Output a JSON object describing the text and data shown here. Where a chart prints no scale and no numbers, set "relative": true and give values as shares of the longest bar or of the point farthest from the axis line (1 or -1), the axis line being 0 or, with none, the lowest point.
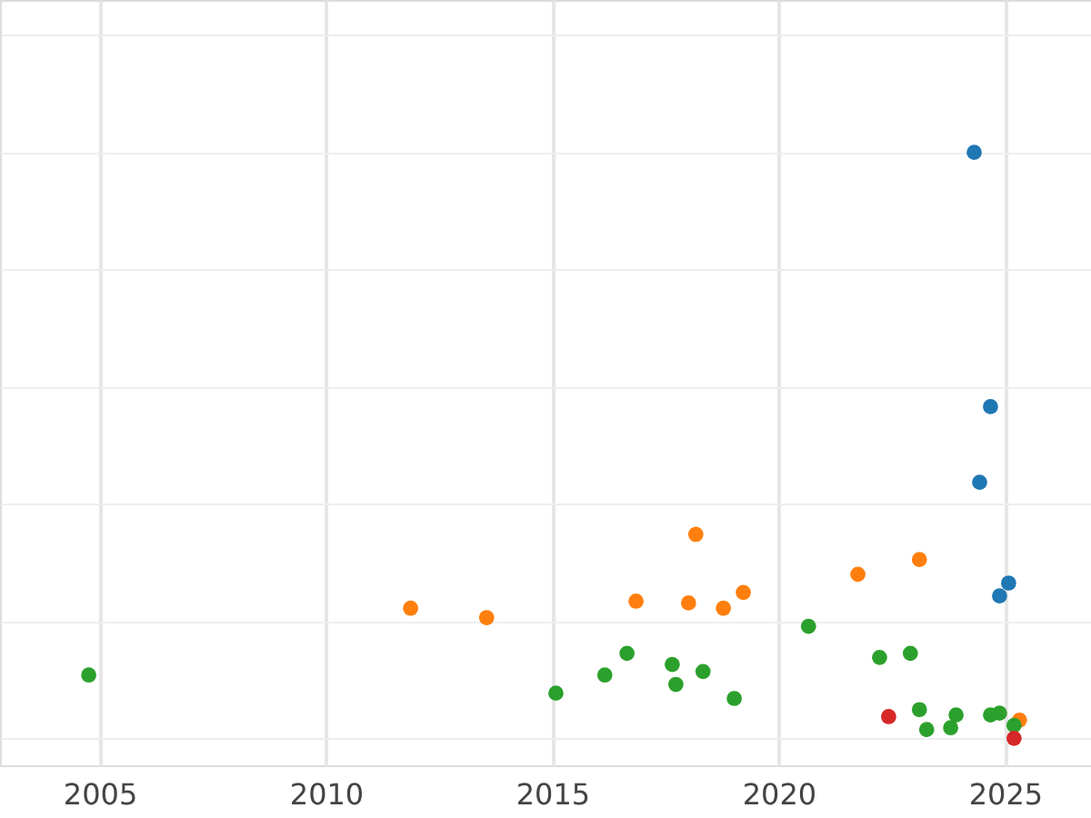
{
  "chart_data": {
    "type": "scatter",
    "relative": true,
    "xlim": [
      2002.8,
      2026.9
    ],
    "xticks": [
      2005,
      2010,
      2015,
      2020,
      2025
    ],
    "grid": true,
    "marker": "circle",
    "series": [
      {
        "color": "#1f77b4",
        "x": [
          2024.32,
          2024.68,
          2024.44,
          2025.08,
          2024.88
        ],
        "values": [
          1.0,
          0.566,
          0.437,
          0.265,
          0.243
        ]
      },
      {
        "color": "#ff7f0e",
        "x": [
          2011.87,
          2013.55,
          2016.85,
          2018.17,
          2018.01,
          2018.78,
          2019.22,
          2021.75,
          2023.11,
          2025.32
        ],
        "values": [
          0.222,
          0.206,
          0.234,
          0.348,
          0.231,
          0.222,
          0.249,
          0.28,
          0.305,
          0.031
        ]
      },
      {
        "color": "#2ca02c",
        "x": [
          2004.76,
          2015.08,
          2016.16,
          2016.65,
          2017.65,
          2017.73,
          2018.33,
          2019.02,
          2020.66,
          2022.23,
          2022.91,
          2023.11,
          2023.27,
          2023.8,
          2023.92,
          2024.68,
          2024.88,
          2025.2
        ],
        "values": [
          0.108,
          0.077,
          0.108,
          0.145,
          0.126,
          0.092,
          0.114,
          0.068,
          0.191,
          0.138,
          0.145,
          0.049,
          0.015,
          0.018,
          0.04,
          0.04,
          0.043,
          0.022
        ]
      },
      {
        "color": "#d62728",
        "x": [
          2022.43,
          2025.2
        ],
        "values": [
          0.037,
          0.0
        ]
      }
    ]
  }
}
